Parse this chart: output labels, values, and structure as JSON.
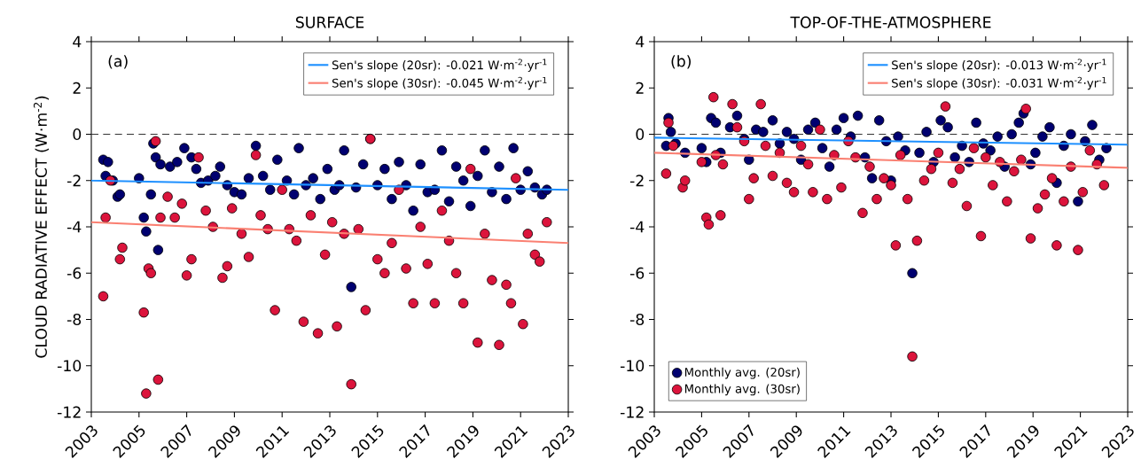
{
  "chart_data": [
    {
      "type": "scatter",
      "title": "SURFACE",
      "ylabel": "CLOUD RADIATIVE EFFECT (W·m$^{-2}$)",
      "xlim": [
        2003,
        2023
      ],
      "ylim": [
        -12,
        4
      ],
      "xticks": [
        2003,
        2005,
        2007,
        2009,
        2011,
        2013,
        2015,
        2017,
        2019,
        2021,
        2023
      ],
      "yticks": [
        -12,
        -10,
        -8,
        -6,
        -4,
        -2,
        0,
        2,
        4
      ],
      "marker": "circle",
      "legend": "top right",
      "annotations": [
        "(a)"
      ],
      "ref_lines": [
        {
          "axis": "y",
          "value": 0,
          "color": "#333333",
          "line_style": "dashed"
        }
      ],
      "series": [
        {
          "color": "#000070",
          "x": [
            2003.5,
            2003.6,
            2003.7,
            2003.9,
            2004.1,
            2004.2,
            2005.0,
            2005.2,
            2005.3,
            2005.5,
            2005.6,
            2005.7,
            2005.8,
            2005.9,
            2006.3,
            2006.6,
            2006.9,
            2007.2,
            2007.4,
            2007.6,
            2007.9,
            2008.2,
            2008.4,
            2008.7,
            2009.0,
            2009.3,
            2009.6,
            2009.9,
            2010.2,
            2010.5,
            2010.8,
            2011.2,
            2011.5,
            2011.7,
            2012.0,
            2012.3,
            2012.6,
            2012.9,
            2013.2,
            2013.4,
            2013.6,
            2013.9,
            2014.1,
            2014.4,
            2014.7,
            2015.0,
            2015.3,
            2015.6,
            2015.9,
            2016.2,
            2016.5,
            2016.8,
            2017.1,
            2017.4,
            2017.7,
            2018.0,
            2018.3,
            2018.6,
            2018.9,
            2019.2,
            2019.5,
            2019.8,
            2020.1,
            2020.4,
            2020.7,
            2021.0,
            2021.3,
            2021.6,
            2021.9,
            2022.1
          ],
          "values": [
            -1.1,
            -1.8,
            -1.2,
            -2.0,
            -2.7,
            -2.6,
            -1.9,
            -3.6,
            -4.2,
            -2.6,
            -0.4,
            -1.0,
            -5.0,
            -1.3,
            -1.4,
            -1.2,
            -0.6,
            -1.0,
            -1.5,
            -2.1,
            -2.0,
            -1.8,
            -1.4,
            -2.2,
            -2.5,
            -2.6,
            -1.9,
            -0.5,
            -1.8,
            -2.4,
            -1.1,
            -2.0,
            -2.6,
            -0.6,
            -2.2,
            -1.9,
            -2.8,
            -1.5,
            -2.4,
            -2.2,
            -0.7,
            -6.6,
            -2.3,
            -1.3,
            -0.2,
            -2.2,
            -1.5,
            -2.8,
            -1.2,
            -2.2,
            -3.3,
            -1.3,
            -2.5,
            -2.4,
            -0.7,
            -2.9,
            -1.4,
            -2.0,
            -3.1,
            -1.8,
            -0.7,
            -2.5,
            -1.4,
            -2.8,
            -0.6,
            -2.4,
            -1.6,
            -2.3,
            -2.6,
            -2.4
          ]
        },
        {
          "color": "#dc143c",
          "x": [
            2003.5,
            2003.6,
            2003.8,
            2004.2,
            2004.3,
            2005.2,
            2005.3,
            2005.4,
            2005.5,
            2005.7,
            2005.8,
            2005.9,
            2006.2,
            2006.5,
            2006.8,
            2007.0,
            2007.2,
            2007.5,
            2007.8,
            2008.1,
            2008.5,
            2008.7,
            2008.9,
            2009.3,
            2009.6,
            2009.9,
            2010.1,
            2010.4,
            2010.7,
            2011.0,
            2011.3,
            2011.6,
            2011.9,
            2012.2,
            2012.5,
            2012.8,
            2013.1,
            2013.3,
            2013.6,
            2013.9,
            2014.2,
            2014.5,
            2014.7,
            2015.0,
            2015.3,
            2015.6,
            2015.9,
            2016.2,
            2016.5,
            2016.8,
            2017.1,
            2017.4,
            2017.7,
            2018.0,
            2018.3,
            2018.6,
            2018.9,
            2019.2,
            2019.5,
            2019.8,
            2020.1,
            2020.4,
            2020.6,
            2020.8,
            2021.1,
            2021.3,
            2021.6,
            2021.8,
            2022.1
          ],
          "values": [
            -7.0,
            -3.6,
            -2.0,
            -5.4,
            -4.9,
            -7.7,
            -11.2,
            -5.8,
            -6.0,
            -0.3,
            -10.6,
            -3.6,
            -2.7,
            -3.6,
            -3.0,
            -6.1,
            -5.4,
            -1.0,
            -3.3,
            -4.0,
            -6.2,
            -5.7,
            -3.2,
            -4.3,
            -5.3,
            -0.9,
            -3.5,
            -4.1,
            -7.6,
            -2.4,
            -4.1,
            -4.6,
            -8.1,
            -3.5,
            -8.6,
            -5.2,
            -3.8,
            -8.3,
            -4.3,
            -10.8,
            -4.1,
            -7.6,
            -0.2,
            -5.4,
            -6.0,
            -4.7,
            -2.4,
            -5.8,
            -7.3,
            -4.0,
            -5.6,
            -7.3,
            -3.3,
            -4.6,
            -6.0,
            -7.3,
            -1.5,
            -9.0,
            -4.3,
            -6.3,
            -9.1,
            -6.5,
            -7.3,
            -1.9,
            -8.2,
            -4.3,
            -5.2,
            -5.5,
            -3.8
          ]
        },
        {
          "type": "line",
          "name": "Sen's slope (20sr): -0.021 W·m$^{-2}$·yr$^{-1}$",
          "color": "#1e90ff",
          "marker": "none",
          "x": [
            2003,
            2023
          ],
          "values": [
            -2.0,
            -2.4
          ]
        },
        {
          "type": "line",
          "name": "Sen's slope (30sr): -0.045 W·m$^{-2}$·yr$^{-1}$",
          "color": "#fa8072",
          "marker": "none",
          "x": [
            2003,
            2023
          ],
          "values": [
            -3.8,
            -4.7
          ]
        }
      ]
    },
    {
      "type": "scatter",
      "title": "TOP-OF-THE-ATMOSPHERE",
      "xlim": [
        2003,
        2023
      ],
      "ylim": [
        -12,
        4
      ],
      "xticks": [
        2003,
        2005,
        2007,
        2009,
        2011,
        2013,
        2015,
        2017,
        2019,
        2021,
        2023
      ],
      "yticks": [
        -12,
        -10,
        -8,
        -6,
        -4,
        -2,
        0,
        2,
        4
      ],
      "marker": "circle",
      "legend": [
        "bottom left",
        "top right"
      ],
      "annotations": [
        "(b)"
      ],
      "ref_lines": [
        {
          "axis": "y",
          "value": 0,
          "color": "#333333",
          "line_style": "dashed"
        }
      ],
      "series": [
        {
          "name": "Monthly avg. (20sr)",
          "color": "#000070",
          "x": [
            2003.5,
            2003.6,
            2003.7,
            2003.9,
            2004.3,
            2005.0,
            2005.2,
            2005.4,
            2005.6,
            2005.8,
            2006.2,
            2006.5,
            2006.8,
            2007.0,
            2007.3,
            2007.6,
            2008.0,
            2008.3,
            2008.6,
            2008.9,
            2009.2,
            2009.5,
            2009.8,
            2010.1,
            2010.4,
            2010.7,
            2011.0,
            2011.3,
            2011.6,
            2011.9,
            2012.2,
            2012.5,
            2012.8,
            2013.0,
            2013.3,
            2013.6,
            2013.9,
            2014.2,
            2014.5,
            2014.8,
            2015.1,
            2015.4,
            2015.7,
            2016.0,
            2016.3,
            2016.6,
            2016.9,
            2017.2,
            2017.5,
            2017.8,
            2018.1,
            2018.4,
            2018.6,
            2018.9,
            2019.1,
            2019.4,
            2019.7,
            2020.0,
            2020.3,
            2020.6,
            2020.9,
            2021.2,
            2021.5,
            2021.8,
            2022.1
          ],
          "values": [
            -0.5,
            0.7,
            0.1,
            -0.4,
            -0.8,
            -0.6,
            -1.2,
            0.7,
            0.5,
            -0.8,
            0.3,
            0.8,
            -0.2,
            -1.1,
            0.2,
            0.1,
            0.6,
            -0.4,
            0.1,
            -0.2,
            -1.1,
            0.2,
            0.5,
            -0.6,
            -1.4,
            0.2,
            0.7,
            -0.1,
            0.8,
            -1.0,
            -1.9,
            0.6,
            -0.3,
            -2.0,
            -0.1,
            -0.7,
            -6.0,
            -0.8,
            0.1,
            -1.2,
            0.6,
            0.3,
            -1.0,
            -0.5,
            -1.2,
            0.5,
            -0.4,
            -0.7,
            -0.1,
            -1.4,
            0.0,
            0.5,
            0.9,
            -1.3,
            -0.8,
            -0.1,
            0.3,
            -2.1,
            -0.5,
            0.0,
            -2.9,
            -0.3,
            0.4,
            -1.1,
            -0.6
          ]
        },
        {
          "name": "Monthly avg. (30sr)",
          "color": "#dc143c",
          "x": [
            2003.5,
            2003.6,
            2003.8,
            2004.2,
            2004.3,
            2005.0,
            2005.2,
            2005.3,
            2005.5,
            2005.6,
            2005.8,
            2005.9,
            2006.3,
            2006.5,
            2006.8,
            2007.0,
            2007.2,
            2007.5,
            2007.7,
            2008.0,
            2008.3,
            2008.6,
            2008.9,
            2009.2,
            2009.5,
            2009.7,
            2010.0,
            2010.3,
            2010.6,
            2010.9,
            2011.2,
            2011.5,
            2011.8,
            2012.1,
            2012.4,
            2012.7,
            2013.0,
            2013.2,
            2013.4,
            2013.7,
            2013.9,
            2014.1,
            2014.4,
            2014.7,
            2015.0,
            2015.3,
            2015.6,
            2015.9,
            2016.2,
            2016.5,
            2016.8,
            2017.0,
            2017.3,
            2017.6,
            2017.9,
            2018.2,
            2018.5,
            2018.7,
            2018.9,
            2019.2,
            2019.5,
            2019.8,
            2020.0,
            2020.3,
            2020.6,
            2020.9,
            2021.1,
            2021.4,
            2021.7,
            2022.0
          ],
          "values": [
            -1.7,
            0.5,
            -0.5,
            -2.3,
            -2.0,
            -1.2,
            -3.6,
            -3.9,
            1.6,
            -0.9,
            -3.5,
            -1.3,
            1.3,
            0.3,
            -0.3,
            -2.8,
            -1.9,
            1.3,
            -0.5,
            -1.8,
            -0.8,
            -2.1,
            -2.5,
            -0.5,
            -1.3,
            -2.5,
            0.2,
            -2.8,
            -0.9,
            -2.3,
            -0.3,
            -1.0,
            -3.4,
            -1.4,
            -2.8,
            -1.9,
            -2.2,
            -4.8,
            -0.9,
            -2.8,
            -9.6,
            -4.6,
            -2.0,
            -1.5,
            -0.8,
            1.2,
            -2.1,
            -1.5,
            -3.1,
            -0.6,
            -4.4,
            -1.0,
            -2.2,
            -1.2,
            -2.9,
            -1.6,
            -1.1,
            1.1,
            -4.5,
            -3.2,
            -2.6,
            -1.9,
            -4.8,
            -2.9,
            -1.4,
            -5.0,
            -2.5,
            -0.7,
            -1.3,
            -2.2
          ]
        },
        {
          "type": "line",
          "name": "Sen's slope (20sr): -0.013 W·m$^{-2}$·yr$^{-1}$",
          "color": "#1e90ff",
          "marker": "none",
          "x": [
            2003,
            2023
          ],
          "values": [
            -0.15,
            -0.45
          ]
        },
        {
          "type": "line",
          "name": "Sen's slope (30sr): -0.031 W·m$^{-2}$·yr$^{-1}$",
          "color": "#fa8072",
          "marker": "none",
          "x": [
            2003,
            2023
          ],
          "values": [
            -0.8,
            -1.45
          ]
        }
      ]
    }
  ]
}
